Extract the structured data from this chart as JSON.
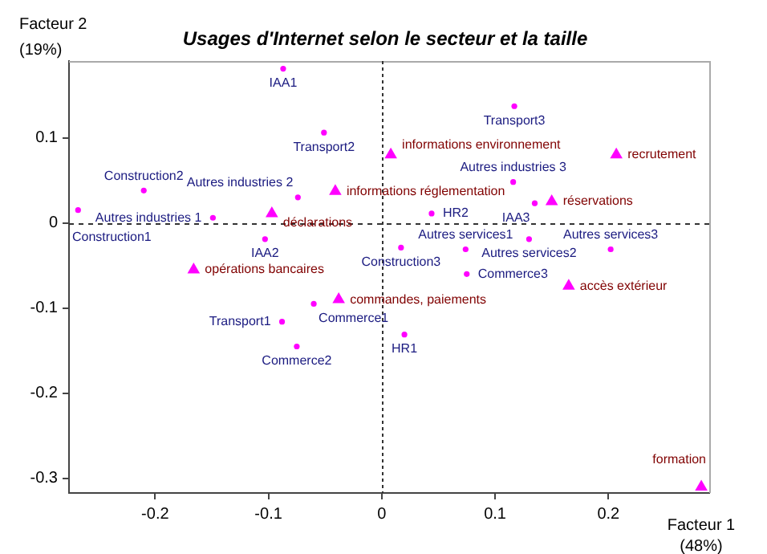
{
  "chart_data": {
    "type": "scatter",
    "title": "Usages d'Internet selon le secteur et la taille",
    "xlabel": "Facteur 1\n(48%)",
    "ylabel": "Facteur 2\n(19%)",
    "xlim": [
      -0.276,
      0.289
    ],
    "ylim": [
      -0.317,
      0.19
    ],
    "xticks": [
      -0.2,
      -0.1,
      0,
      0.1,
      0.2
    ],
    "yticks": [
      -0.3,
      -0.2,
      -0.1,
      0,
      0.1
    ],
    "grid": false,
    "legend": false,
    "ref_lines": [
      {
        "axis": "x",
        "value": 0,
        "line_style": "dotted",
        "color": "#333333"
      },
      {
        "axis": "y",
        "value": 0,
        "line_style": "dashed",
        "color": "#333333"
      }
    ],
    "series": [
      {
        "name": "IAA1",
        "x": [
          -0.087
        ],
        "values": [
          0.181
        ],
        "color": "#ff00ff",
        "marker": "circle"
      },
      {
        "name": "Transport2",
        "x": [
          -0.051
        ],
        "values": [
          0.106
        ],
        "color": "#ff00ff",
        "marker": "circle"
      },
      {
        "name": "Construction2",
        "x": [
          -0.21
        ],
        "values": [
          0.038
        ],
        "color": "#ff00ff",
        "marker": "circle"
      },
      {
        "name": "Construction1",
        "x": [
          -0.268
        ],
        "values": [
          0.015
        ],
        "color": "#ff00ff",
        "marker": "circle"
      },
      {
        "name": "Autres industries 1",
        "x": [
          -0.149
        ],
        "values": [
          0.006
        ],
        "color": "#ff00ff",
        "marker": "circle"
      },
      {
        "name": "Autres industries 2",
        "x": [
          -0.074
        ],
        "values": [
          0.03
        ],
        "color": "#ff00ff",
        "marker": "circle"
      },
      {
        "name": "IAA2",
        "x": [
          -0.103
        ],
        "values": [
          -0.019
        ],
        "color": "#ff00ff",
        "marker": "circle"
      },
      {
        "name": "Transport3",
        "x": [
          0.117
        ],
        "values": [
          0.137
        ],
        "color": "#ff00ff",
        "marker": "circle"
      },
      {
        "name": "Autres industries 3",
        "x": [
          0.116
        ],
        "values": [
          0.048
        ],
        "color": "#ff00ff",
        "marker": "circle"
      },
      {
        "name": "HR2",
        "x": [
          0.044
        ],
        "values": [
          0.011
        ],
        "color": "#ff00ff",
        "marker": "circle"
      },
      {
        "name": "IAA3",
        "x": [
          0.135
        ],
        "values": [
          0.023
        ],
        "color": "#ff00ff",
        "marker": "circle"
      },
      {
        "name": "Autres services2",
        "x": [
          0.13
        ],
        "values": [
          -0.019
        ],
        "color": "#ff00ff",
        "marker": "circle"
      },
      {
        "name": "Construction3",
        "x": [
          0.017
        ],
        "values": [
          -0.029
        ],
        "color": "#ff00ff",
        "marker": "circle"
      },
      {
        "name": "Autres services1",
        "x": [
          0.074
        ],
        "values": [
          -0.031
        ],
        "color": "#ff00ff",
        "marker": "circle"
      },
      {
        "name": "Autres services3",
        "x": [
          0.202
        ],
        "values": [
          -0.031
        ],
        "color": "#ff00ff",
        "marker": "circle"
      },
      {
        "name": "Commerce3",
        "x": [
          0.075
        ],
        "values": [
          -0.06
        ],
        "color": "#ff00ff",
        "marker": "circle"
      },
      {
        "name": "HR1",
        "x": [
          0.02
        ],
        "values": [
          -0.131
        ],
        "color": "#ff00ff",
        "marker": "circle"
      },
      {
        "name": "Commerce1",
        "x": [
          -0.06
        ],
        "values": [
          -0.095
        ],
        "color": "#ff00ff",
        "marker": "circle"
      },
      {
        "name": "Transport1",
        "x": [
          -0.088
        ],
        "values": [
          -0.116
        ],
        "color": "#ff00ff",
        "marker": "circle"
      },
      {
        "name": "Commerce2",
        "x": [
          -0.075
        ],
        "values": [
          -0.145
        ],
        "color": "#ff00ff",
        "marker": "circle"
      },
      {
        "name": "informations environnement",
        "x": [
          0.008
        ],
        "values": [
          0.08
        ],
        "color": "#ff00ff",
        "marker": "triangle"
      },
      {
        "name": "recrutement",
        "x": [
          0.207
        ],
        "values": [
          0.08
        ],
        "color": "#ff00ff",
        "marker": "triangle"
      },
      {
        "name": "réservations",
        "x": [
          0.15
        ],
        "values": [
          0.025
        ],
        "color": "#ff00ff",
        "marker": "triangle"
      },
      {
        "name": "informations réglementation",
        "x": [
          -0.041
        ],
        "values": [
          0.037
        ],
        "color": "#ff00ff",
        "marker": "triangle"
      },
      {
        "name": "déclarations",
        "x": [
          -0.097
        ],
        "values": [
          0.011
        ],
        "color": "#ff00ff",
        "marker": "triangle"
      },
      {
        "name": "opérations bancaires",
        "x": [
          -0.166
        ],
        "values": [
          -0.055
        ],
        "color": "#ff00ff",
        "marker": "triangle"
      },
      {
        "name": "commandes, paiements",
        "x": [
          -0.038
        ],
        "values": [
          -0.09
        ],
        "color": "#ff00ff",
        "marker": "triangle"
      },
      {
        "name": "accès extérieur",
        "x": [
          0.165
        ],
        "values": [
          -0.074
        ],
        "color": "#ff00ff",
        "marker": "triangle"
      },
      {
        "name": "formation",
        "x": [
          0.282
        ],
        "values": [
          -0.31
        ],
        "color": "#ff00ff",
        "marker": "triangle"
      }
    ]
  }
}
